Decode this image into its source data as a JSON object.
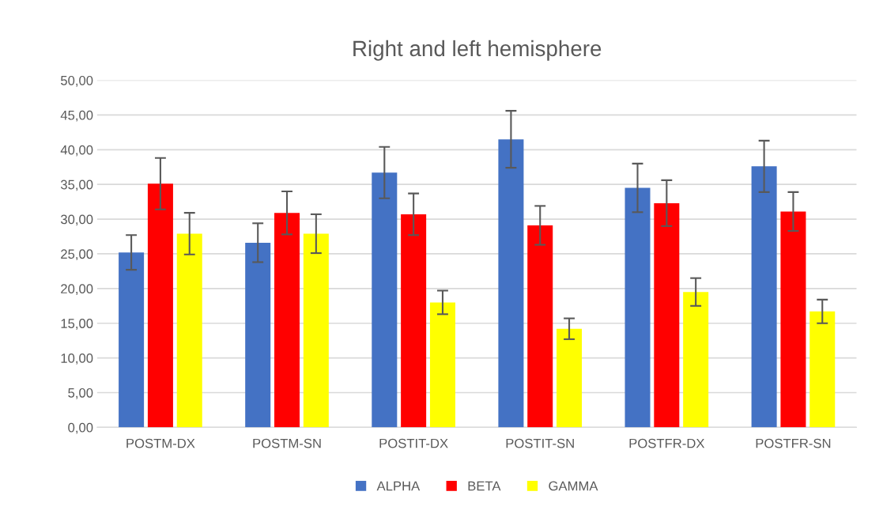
{
  "chart_data": {
    "type": "bar",
    "title": "Right and left hemisphere",
    "categories": [
      "POSTM-DX",
      "POSTM-SN",
      "POSTIT-DX",
      "POSTIT-SN",
      "POSTFR-DX",
      "POSTFR-SN"
    ],
    "series": [
      {
        "name": "ALPHA",
        "color": "#4472c4",
        "values": [
          25.2,
          26.6,
          36.7,
          41.5,
          34.5,
          37.6
        ],
        "errors": [
          2.5,
          2.8,
          3.7,
          4.1,
          3.5,
          3.7
        ]
      },
      {
        "name": "BETA",
        "color": "#ff0000",
        "values": [
          35.1,
          30.9,
          30.7,
          29.1,
          32.3,
          31.1
        ],
        "errors": [
          3.7,
          3.1,
          3.0,
          2.8,
          3.3,
          2.8
        ]
      },
      {
        "name": "GAMMA",
        "color": "#ffff00",
        "values": [
          27.9,
          27.9,
          18.0,
          14.2,
          19.5,
          16.7
        ],
        "errors": [
          3.0,
          2.8,
          1.7,
          1.5,
          2.0,
          1.7
        ]
      }
    ],
    "ylim": [
      0,
      50
    ],
    "yticks": [
      {
        "value": 0,
        "label": "0,00"
      },
      {
        "value": 5,
        "label": "5,00"
      },
      {
        "value": 10,
        "label": "10,00"
      },
      {
        "value": 15,
        "label": "15,00"
      },
      {
        "value": 20,
        "label": "20,00"
      },
      {
        "value": 25,
        "label": "25,00"
      },
      {
        "value": 30,
        "label": "30,00"
      },
      {
        "value": 35,
        "label": "35,00"
      },
      {
        "value": 40,
        "label": "40,00"
      },
      {
        "value": 45,
        "label": "45,00"
      },
      {
        "value": 50,
        "label": "50,00"
      }
    ],
    "grid": "y",
    "legend": "bottom"
  }
}
